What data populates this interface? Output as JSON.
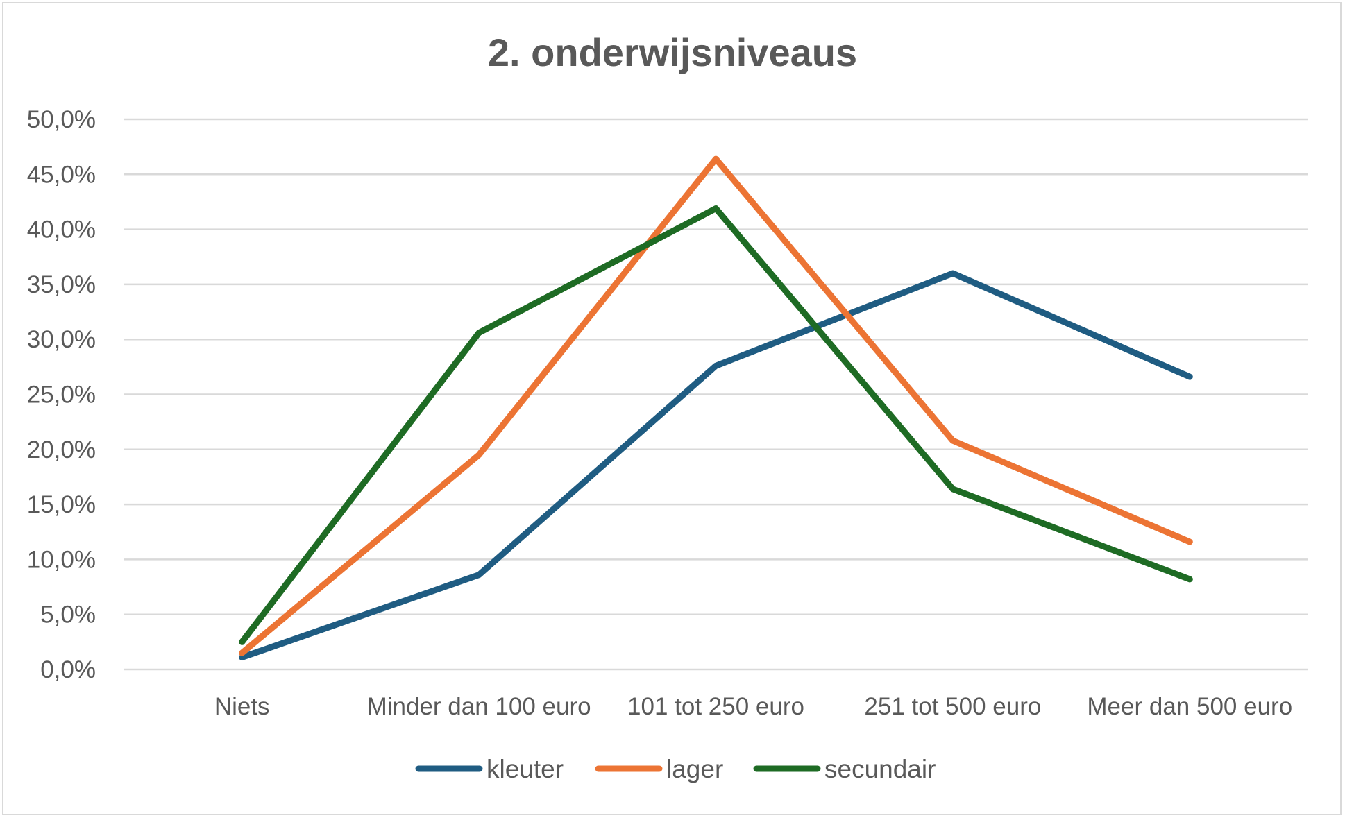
{
  "chart_data": {
    "type": "line",
    "title": "2. onderwijsniveaus",
    "xlabel": "",
    "ylabel": "",
    "categories": [
      "Niets",
      "Minder dan 100 euro",
      "101 tot 250 euro",
      "251 tot 500 euro",
      "Meer dan 500 euro"
    ],
    "ylim": [
      0,
      50
    ],
    "y_ticks": [
      0,
      5,
      10,
      15,
      20,
      25,
      30,
      35,
      40,
      45,
      50
    ],
    "y_tick_labels": [
      "0,0%",
      "5,0%",
      "10,0%",
      "15,0%",
      "20,0%",
      "25,0%",
      "30,0%",
      "35,0%",
      "40,0%",
      "45,0%",
      "50,0%"
    ],
    "grid": true,
    "legend": "bottom",
    "series": [
      {
        "name": "kleuter",
        "color": "#1f5c82",
        "values": [
          1.1,
          8.6,
          27.6,
          36.0,
          26.6
        ]
      },
      {
        "name": "lager",
        "color": "#ec7434",
        "values": [
          1.5,
          19.5,
          46.4,
          20.8,
          11.6
        ]
      },
      {
        "name": "secundair",
        "color": "#1e6b24",
        "values": [
          2.5,
          30.6,
          41.9,
          16.4,
          8.2
        ]
      }
    ]
  }
}
